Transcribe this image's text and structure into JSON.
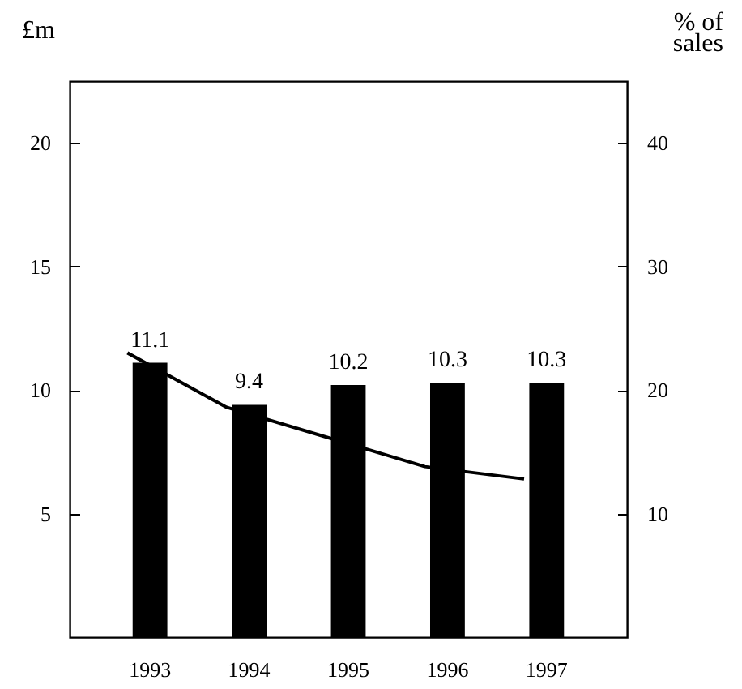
{
  "chart_data": {
    "type": "bar",
    "ylabel": "£m",
    "y2label": "% of\nsales",
    "categories": [
      "1993",
      "1994",
      "1995",
      "1996",
      "1997"
    ],
    "series": [
      {
        "color": "#000000",
        "values": [
          11.1,
          9.4,
          10.2,
          10.3,
          10.3
        ],
        "value_labels": [
          "11.1",
          "9.4",
          "10.2",
          "10.3",
          "10.3"
        ]
      },
      {
        "type": "line",
        "axis": "y2",
        "color": "#000000",
        "line_style": "solid",
        "values": [
          23,
          18.6,
          16.2,
          13.8,
          12.8
        ]
      }
    ],
    "ylim": [
      0,
      22.5
    ],
    "yticks": [
      5,
      10,
      15,
      20
    ],
    "y2lim": [
      0,
      45
    ],
    "y2ticks": [
      10,
      20,
      30,
      40
    ],
    "grid": false
  }
}
